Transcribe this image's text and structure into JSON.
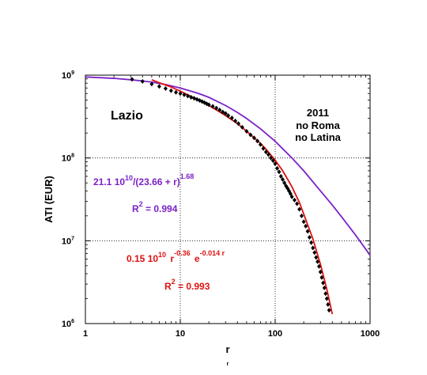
{
  "chart_data": {
    "type": "scatter",
    "title": "",
    "xlabel": "r",
    "xlabel_sub": "r",
    "ylabel": "ATI  (EUR)",
    "xscale": "log",
    "yscale": "log",
    "xlim": [
      1,
      1000
    ],
    "ylim": [
      1000000,
      1000000000
    ],
    "x_ticks": [
      {
        "value": 1,
        "label": "1"
      },
      {
        "value": 10,
        "label": "10"
      },
      {
        "value": 100,
        "label": "100"
      },
      {
        "value": 1000,
        "label": "1000"
      }
    ],
    "y_ticks": [
      {
        "value": 1000000,
        "base": "10",
        "exp": "6"
      },
      {
        "value": 10000000,
        "base": "10",
        "exp": "7"
      },
      {
        "value": 100000000,
        "base": "10",
        "exp": "8"
      },
      {
        "value": 1000000000,
        "base": "10",
        "exp": "9"
      }
    ],
    "grid": "dotted at 10, 100 (x) and 1e7, 1e8 (y)",
    "annotations": {
      "region": "Lazio",
      "note_line1": "2011",
      "note_line2": "no Roma",
      "note_line3": "no Latina",
      "fit1_a": "21.1 10",
      "fit1_b": "10",
      "fit1_c": "/(23.66 + r)",
      "fit1_d": "1.68",
      "fit1_r2_a": "R",
      "fit1_r2_b": "2",
      "fit1_r2_c": " = 0.994",
      "fit2_a": "0.15 10",
      "fit2_b": "10",
      "fit2_c": " r",
      "fit2_d": "-0.36",
      "fit2_e": " e",
      "fit2_f": "-0.014 r",
      "fit2_r2_a": "R",
      "fit2_r2_b": "2",
      "fit2_r2_c": " = 0.993"
    },
    "series": [
      {
        "name": "",
        "kind": "markers",
        "color": "#000000",
        "x": [
          3.1,
          4,
          5,
          6,
          7,
          8,
          9,
          10,
          11,
          12,
          13,
          14,
          15,
          16,
          17,
          18,
          19,
          20,
          22,
          24,
          26,
          28,
          30,
          32,
          35,
          38,
          41,
          45,
          50,
          55,
          60,
          65,
          70,
          75,
          80,
          85,
          90,
          95,
          100,
          105,
          110,
          115,
          120,
          125,
          130,
          135,
          140,
          145,
          150,
          160,
          170,
          180,
          190,
          200,
          210,
          220,
          230,
          240,
          250,
          260,
          270,
          280,
          290,
          300,
          310,
          320,
          330,
          340,
          350,
          360,
          370
        ],
        "y": [
          890000000,
          840000000,
          780000000,
          730000000,
          690000000,
          650000000,
          620000000,
          600000000,
          580000000,
          560000000,
          540000000,
          525000000,
          510000000,
          495000000,
          480000000,
          465000000,
          450000000,
          440000000,
          420000000,
          400000000,
          380000000,
          360000000,
          345000000,
          325000000,
          305000000,
          280000000,
          260000000,
          235000000,
          210000000,
          190000000,
          175000000,
          160000000,
          145000000,
          130000000,
          118000000,
          110000000,
          100000000,
          93000000,
          85000000,
          75000000,
          68000000,
          60000000,
          55000000,
          50000000,
          46000000,
          43000000,
          40000000,
          37000000,
          34000000,
          31000000,
          28000000,
          24000000,
          20000000,
          17000000,
          15000000,
          13000000,
          11000000,
          9500000,
          8200000,
          7200000,
          6300000,
          5600000,
          4900000,
          4200000,
          3600000,
          3100000,
          2700000,
          2300000,
          2000000,
          1700000,
          1450000
        ]
      },
      {
        "name": "",
        "kind": "line",
        "color": "#7B22C6",
        "x": [
          1,
          1.5,
          2,
          3,
          4,
          5,
          7,
          10,
          15,
          20,
          30,
          40,
          50,
          70,
          100,
          150,
          200,
          300,
          400,
          500,
          700,
          1000
        ],
        "y": [
          950000000,
          930000000,
          915000000,
          880000000,
          850000000,
          825000000,
          770000000,
          700000000,
          610000000,
          540000000,
          430000000,
          355000000,
          300000000,
          225000000,
          159000000,
          100000000,
          70000000,
          40000000,
          27000000,
          19500000,
          11800000,
          6700000
        ]
      },
      {
        "name": "",
        "kind": "line",
        "color": "#E01010",
        "x": [
          5,
          6,
          7,
          8,
          10,
          12,
          15,
          20,
          25,
          30,
          40,
          50,
          60,
          70,
          80,
          100,
          120,
          150,
          180,
          200,
          250,
          300,
          350,
          400
        ],
        "y": [
          880000000,
          810000000,
          760000000,
          720000000,
          640000000,
          580000000,
          510000000,
          430000000,
          370000000,
          325000000,
          260000000,
          210000000,
          175000000,
          150000000,
          128000000,
          94000000,
          70000000,
          45000000,
          29000000,
          21000000,
          10500000,
          5200000,
          2600000,
          1300000
        ]
      }
    ]
  }
}
